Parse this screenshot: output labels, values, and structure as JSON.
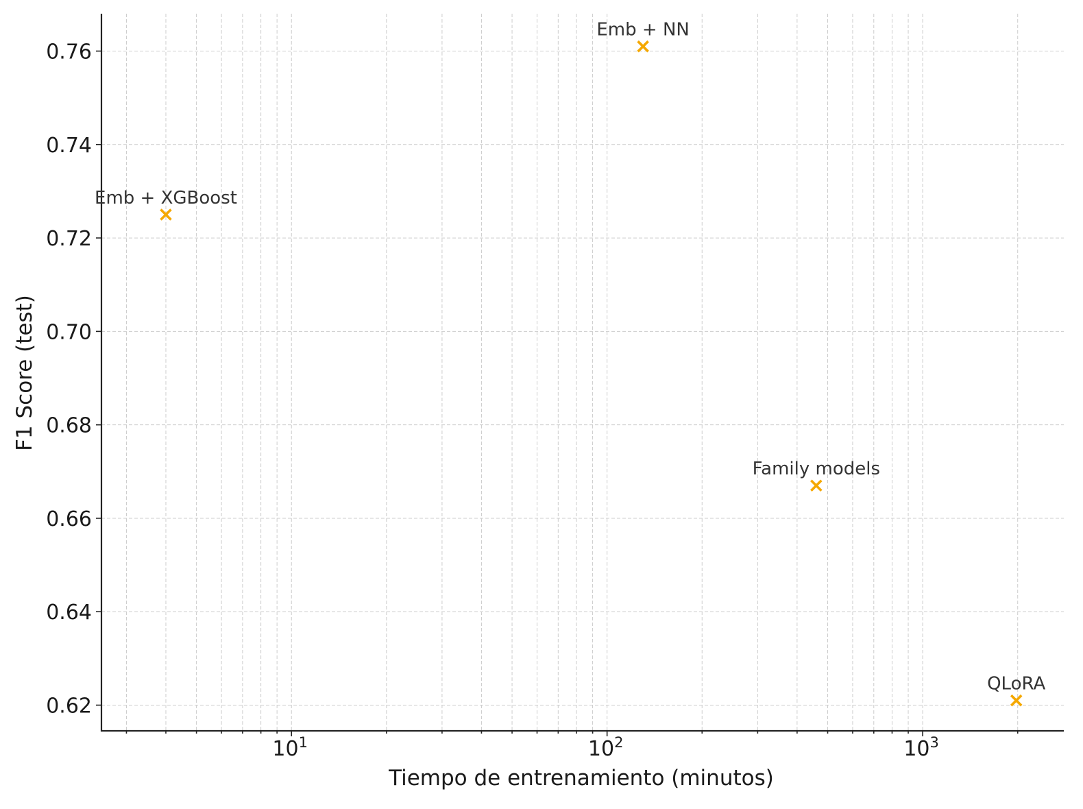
{
  "chart_data": {
    "type": "scatter",
    "title": "",
    "xlabel": "Tiempo de entrenamiento (minutos)",
    "ylabel": "F1 Score (test)",
    "x_scale": "log",
    "xlim": [
      2.5,
      2800
    ],
    "ylim": [
      0.6145,
      0.768
    ],
    "grid": true,
    "marker": "x",
    "marker_color": "#F5A800",
    "x_ticks": [
      {
        "value": 10,
        "base": "10",
        "exp": "1"
      },
      {
        "value": 100,
        "base": "10",
        "exp": "2"
      },
      {
        "value": 1000,
        "base": "10",
        "exp": "3"
      }
    ],
    "y_ticks": [
      {
        "value": 0.62,
        "label": "0.62"
      },
      {
        "value": 0.64,
        "label": "0.64"
      },
      {
        "value": 0.66,
        "label": "0.66"
      },
      {
        "value": 0.68,
        "label": "0.68"
      },
      {
        "value": 0.7,
        "label": "0.70"
      },
      {
        "value": 0.72,
        "label": "0.72"
      },
      {
        "value": 0.74,
        "label": "0.74"
      },
      {
        "value": 0.76,
        "label": "0.76"
      }
    ],
    "points": [
      {
        "label": "Emb + XGBoost",
        "x": 4,
        "y": 0.725
      },
      {
        "label": "Emb + NN",
        "x": 130,
        "y": 0.761
      },
      {
        "label": "Family models",
        "x": 460,
        "y": 0.667
      },
      {
        "label": "QLoRA",
        "x": 1980,
        "y": 0.621
      }
    ]
  }
}
